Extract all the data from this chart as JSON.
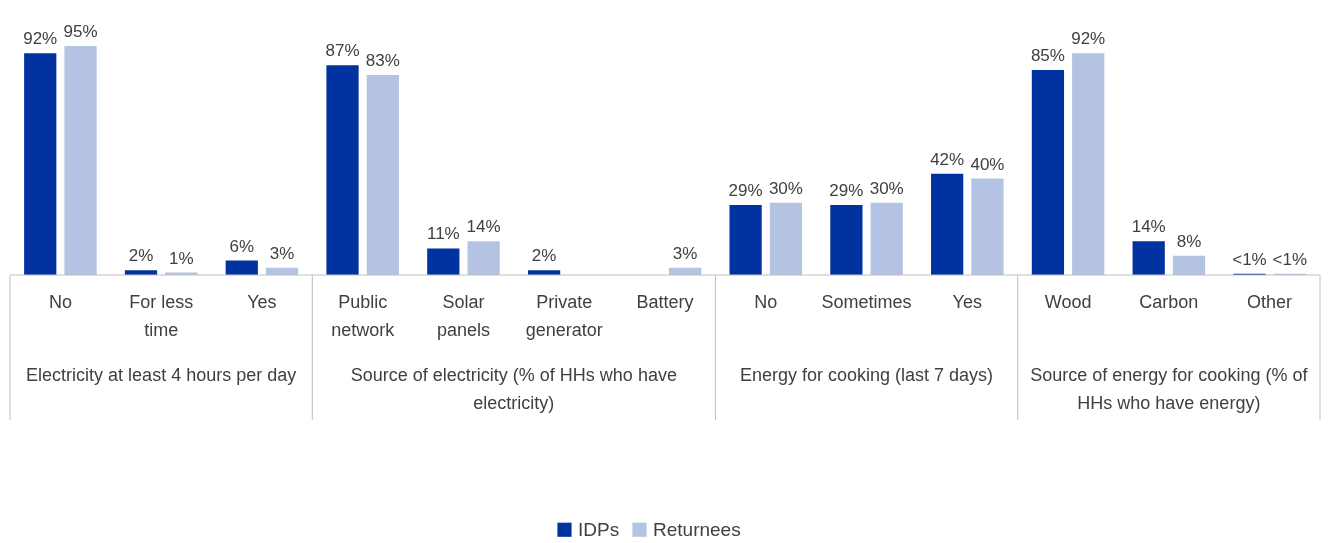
{
  "chart_data": {
    "type": "bar",
    "categories": [
      "No",
      "For less time",
      "Yes",
      "Public network",
      "Solar panels",
      "Private generator",
      "Battery",
      "No",
      "Sometimes",
      "Yes",
      "Wood",
      "Carbon",
      "Other"
    ],
    "series": [
      {
        "name": "IDPs",
        "color": "#0033a0",
        "values": [
          92,
          2,
          6,
          87,
          11,
          2,
          null,
          29,
          29,
          42,
          85,
          14,
          0.5
        ],
        "value_labels": [
          "92%",
          "2%",
          "6%",
          "87%",
          "11%",
          "2%",
          null,
          "29%",
          "29%",
          "42%",
          "85%",
          "14%",
          "<1%"
        ]
      },
      {
        "name": "Returnees",
        "color": "#b4c3e4",
        "values": [
          95,
          1,
          3,
          83,
          14,
          null,
          3,
          30,
          30,
          40,
          92,
          8,
          0.5
        ],
        "value_labels": [
          "95%",
          "1%",
          "3%",
          "83%",
          "14%",
          null,
          "3%",
          "30%",
          "30%",
          "40%",
          "92%",
          "8%",
          "<1%"
        ]
      }
    ],
    "annotations": [
      "Electricity at least 4 hours per day",
      "Source of electricity (% of HHs who have electricity)",
      "Energy for cooking (last 7 days)",
      "Source of energy for cooking (% of HHs who have energy)"
    ],
    "legend": "bottom"
  }
}
